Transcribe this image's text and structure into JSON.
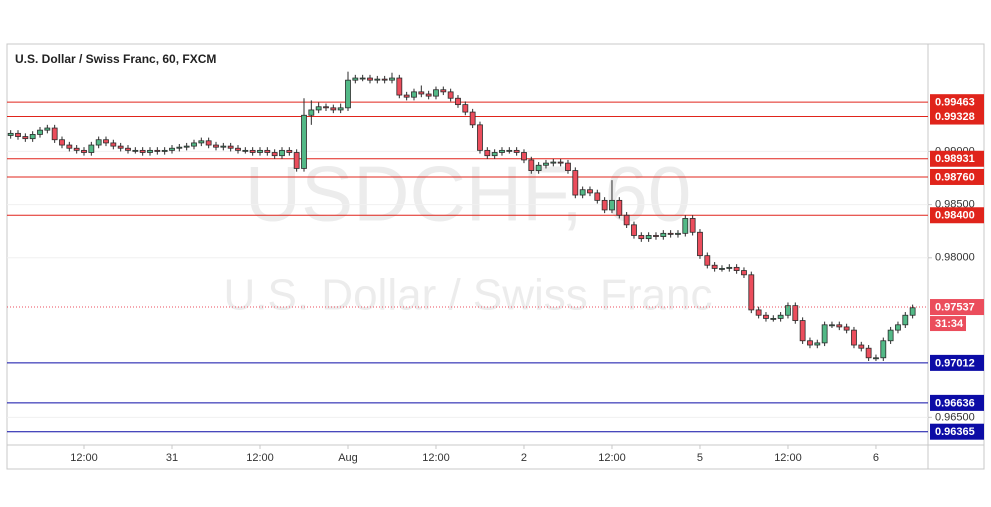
{
  "chart_data": {
    "type": "candlestick",
    "title": "U.S. Dollar / Swiss Franc, 60, FXCM",
    "watermark": "USDCHF, 60",
    "watermark_subtitle": "U.S. Dollar / Swiss Franc",
    "categories": [
      null,
      null,
      null,
      null,
      null,
      null,
      null,
      null,
      null,
      null,
      "12:00",
      null,
      null,
      null,
      null,
      null,
      null,
      null,
      null,
      null,
      null,
      null,
      "31",
      null,
      null,
      null,
      null,
      null,
      null,
      null,
      null,
      null,
      null,
      null,
      "12:00",
      null,
      null,
      null,
      null,
      null,
      null,
      null,
      null,
      null,
      null,
      null,
      "Aug",
      null,
      null,
      null,
      null,
      null,
      null,
      null,
      null,
      null,
      null,
      null,
      "12:00",
      null,
      null,
      null,
      null,
      null,
      null,
      null,
      null,
      null,
      null,
      null,
      "2",
      null,
      null,
      null,
      null,
      null,
      null,
      null,
      null,
      null,
      null,
      null,
      "12:00",
      null,
      null,
      null,
      null,
      null,
      null,
      null,
      null,
      null,
      null,
      null,
      "5",
      null,
      null,
      null,
      null,
      null,
      null,
      null,
      null,
      null,
      null,
      null,
      "12:00",
      null,
      null,
      null,
      null,
      null,
      null,
      null,
      null,
      null,
      null,
      null,
      "6",
      null,
      null,
      null,
      null,
      null
    ],
    "open": [
      0.9915,
      0.9917,
      0.9914,
      0.9912,
      0.9916,
      0.992,
      0.9922,
      0.9911,
      0.9906,
      0.9903,
      0.9901,
      0.9899,
      0.9906,
      0.9911,
      0.9908,
      0.9905,
      0.9903,
      0.9901,
      0.9901,
      0.9899,
      0.9901,
      0.99,
      0.9901,
      0.9903,
      0.9904,
      0.9905,
      0.9908,
      0.991,
      0.9906,
      0.9904,
      0.9905,
      0.9903,
      0.9901,
      0.9901,
      0.9899,
      0.9901,
      0.9899,
      0.9896,
      0.9901,
      0.9899,
      0.9884,
      0.9934,
      0.9939,
      0.9942,
      0.9941,
      0.9939,
      0.9941,
      0.9967,
      0.9969,
      0.9969,
      0.9967,
      0.9968,
      0.9967,
      0.9969,
      0.9953,
      0.9951,
      0.9956,
      0.9954,
      0.9952,
      0.9958,
      0.9956,
      0.995,
      0.9944,
      0.9937,
      0.9925,
      0.9901,
      0.9896,
      0.9899,
      0.9901,
      0.9901,
      0.9899,
      0.9892,
      0.9882,
      0.9887,
      0.9889,
      0.989,
      0.9889,
      0.9882,
      0.9859,
      0.9864,
      0.9861,
      0.9854,
      0.9845,
      0.9854,
      0.984,
      0.9831,
      0.9821,
      0.9818,
      0.9821,
      0.982,
      0.9823,
      0.9822,
      0.9823,
      0.9837,
      0.9824,
      0.9802,
      0.9793,
      0.979,
      0.979,
      0.9791,
      0.9788,
      0.9784,
      0.9751,
      0.9746,
      0.9743,
      0.9743,
      0.9746,
      0.9755,
      0.9741,
      0.9722,
      0.9718,
      0.972,
      0.9737,
      0.9737,
      0.9735,
      0.9732,
      0.9718,
      0.9715,
      0.9706,
      0.9706,
      0.9722,
      0.9732,
      0.9737,
      0.9746
    ],
    "high": [
      0.992,
      0.992,
      0.9917,
      0.9919,
      0.9923,
      0.9925,
      0.9925,
      0.9914,
      0.9909,
      0.9906,
      0.9904,
      0.9909,
      0.9914,
      0.9914,
      0.9911,
      0.9908,
      0.9906,
      0.9904,
      0.9904,
      0.9904,
      0.9904,
      0.9904,
      0.9906,
      0.9907,
      0.9908,
      0.9911,
      0.9913,
      0.9913,
      0.9909,
      0.9908,
      0.9908,
      0.9906,
      0.9904,
      0.9904,
      0.9904,
      0.9904,
      0.9902,
      0.9904,
      0.9904,
      0.9902,
      0.995,
      0.9948,
      0.9946,
      0.9945,
      0.9944,
      0.9945,
      0.9975,
      0.9972,
      0.9972,
      0.9972,
      0.9971,
      0.9971,
      0.9974,
      0.9972,
      0.9956,
      0.9959,
      0.9962,
      0.9957,
      0.9961,
      0.9961,
      0.9959,
      0.9953,
      0.9947,
      0.994,
      0.9928,
      0.9904,
      0.9902,
      0.9904,
      0.9904,
      0.9904,
      0.9902,
      0.9895,
      0.989,
      0.9892,
      0.9893,
      0.9893,
      0.9892,
      0.9885,
      0.9867,
      0.9867,
      0.9864,
      0.9857,
      0.9873,
      0.9857,
      0.9843,
      0.9834,
      0.9824,
      0.9824,
      0.9824,
      0.9826,
      0.9826,
      0.9826,
      0.984,
      0.984,
      0.9827,
      0.9805,
      0.9796,
      0.9793,
      0.9794,
      0.9794,
      0.9791,
      0.9787,
      0.9754,
      0.9749,
      0.9746,
      0.9749,
      0.9758,
      0.9758,
      0.9744,
      0.9725,
      0.9723,
      0.974,
      0.974,
      0.974,
      0.9738,
      0.9735,
      0.9721,
      0.9718,
      0.9709,
      0.9725,
      0.9735,
      0.974,
      0.9749,
      0.9756
    ],
    "low": [
      0.9912,
      0.9911,
      0.9909,
      0.9909,
      0.9913,
      0.9917,
      0.9908,
      0.9903,
      0.99,
      0.9898,
      0.9896,
      0.9896,
      0.9903,
      0.9905,
      0.9902,
      0.99,
      0.9898,
      0.9898,
      0.9896,
      0.9896,
      0.9897,
      0.9897,
      0.9898,
      0.99,
      0.9901,
      0.9902,
      0.9905,
      0.9903,
      0.9901,
      0.9901,
      0.99,
      0.9898,
      0.9898,
      0.9896,
      0.9896,
      0.9896,
      0.9893,
      0.9893,
      0.9896,
      0.9881,
      0.9881,
      0.9925,
      0.9936,
      0.9938,
      0.9936,
      0.9936,
      0.9938,
      0.9964,
      0.9966,
      0.9964,
      0.9964,
      0.9964,
      0.9964,
      0.995,
      0.9948,
      0.9948,
      0.9951,
      0.9949,
      0.9949,
      0.9953,
      0.9947,
      0.9941,
      0.9934,
      0.9922,
      0.9898,
      0.9893,
      0.9893,
      0.9896,
      0.9898,
      0.9896,
      0.9889,
      0.9879,
      0.9879,
      0.9884,
      0.9886,
      0.9886,
      0.9879,
      0.9856,
      0.9856,
      0.9858,
      0.9851,
      0.9842,
      0.9842,
      0.9837,
      0.9828,
      0.9818,
      0.9815,
      0.9815,
      0.9817,
      0.9817,
      0.9819,
      0.9819,
      0.982,
      0.9821,
      0.9799,
      0.979,
      0.9787,
      0.9787,
      0.9787,
      0.9785,
      0.9781,
      0.9748,
      0.9743,
      0.974,
      0.974,
      0.974,
      0.9743,
      0.9738,
      0.9719,
      0.9715,
      0.9715,
      0.9717,
      0.9734,
      0.9732,
      0.9729,
      0.9715,
      0.9712,
      0.9703,
      0.9703,
      0.9703,
      0.9719,
      0.9729,
      0.9734,
      0.9743
    ],
    "close": [
      0.9917,
      0.9914,
      0.9912,
      0.9916,
      0.992,
      0.9922,
      0.9911,
      0.9906,
      0.9903,
      0.9901,
      0.9899,
      0.9906,
      0.9911,
      0.9908,
      0.9905,
      0.9903,
      0.9901,
      0.9901,
      0.9899,
      0.9901,
      0.99,
      0.9901,
      0.9903,
      0.9904,
      0.9905,
      0.9908,
      0.991,
      0.9906,
      0.9904,
      0.9905,
      0.9903,
      0.9901,
      0.9901,
      0.9899,
      0.9901,
      0.9899,
      0.9896,
      0.9901,
      0.9899,
      0.9884,
      0.9934,
      0.9939,
      0.9942,
      0.9941,
      0.9939,
      0.9941,
      0.9967,
      0.9969,
      0.9969,
      0.9967,
      0.9968,
      0.9967,
      0.9969,
      0.9953,
      0.9951,
      0.9956,
      0.9954,
      0.9952,
      0.9958,
      0.9956,
      0.995,
      0.9944,
      0.9937,
      0.9925,
      0.9901,
      0.9896,
      0.9899,
      0.9901,
      0.9901,
      0.9899,
      0.9892,
      0.9882,
      0.9887,
      0.9889,
      0.989,
      0.9889,
      0.9882,
      0.9859,
      0.9864,
      0.9861,
      0.9854,
      0.9845,
      0.9854,
      0.984,
      0.9831,
      0.9821,
      0.9818,
      0.9821,
      0.982,
      0.9823,
      0.9822,
      0.9823,
      0.9837,
      0.9824,
      0.9802,
      0.9793,
      0.979,
      0.979,
      0.9791,
      0.9788,
      0.9784,
      0.9751,
      0.9746,
      0.9743,
      0.9743,
      0.9746,
      0.9755,
      0.9741,
      0.9722,
      0.9718,
      0.972,
      0.9737,
      0.9737,
      0.9735,
      0.9732,
      0.9718,
      0.9715,
      0.9706,
      0.9706,
      0.9722,
      0.9732,
      0.9737,
      0.9746,
      0.9753
    ],
    "up_color": "#53b987",
    "down_color": "#eb4d5c",
    "wick_color": "#2b2b2b",
    "ylim": [
      0.9624,
      1.0001
    ],
    "yticks": [
      {
        "value": 0.965,
        "label": "0.96500"
      },
      {
        "value": 0.98,
        "label": "0.98000"
      },
      {
        "value": 0.985,
        "label": "0.98500"
      },
      {
        "value": 0.99,
        "label": "0.99000"
      }
    ],
    "resistance_color": "#e0241b",
    "resistance_levels": [
      0.99463,
      0.99328,
      0.98931,
      {
        "value": 0.9876,
        "label": "0.98760"
      },
      {
        "value": 0.984,
        "label": "0.98400"
      }
    ],
    "support_color": "#0c0ca6",
    "support_levels": [
      0.97012,
      0.96636,
      0.96365
    ],
    "last_price": 0.97537,
    "countdown": "31:34"
  }
}
